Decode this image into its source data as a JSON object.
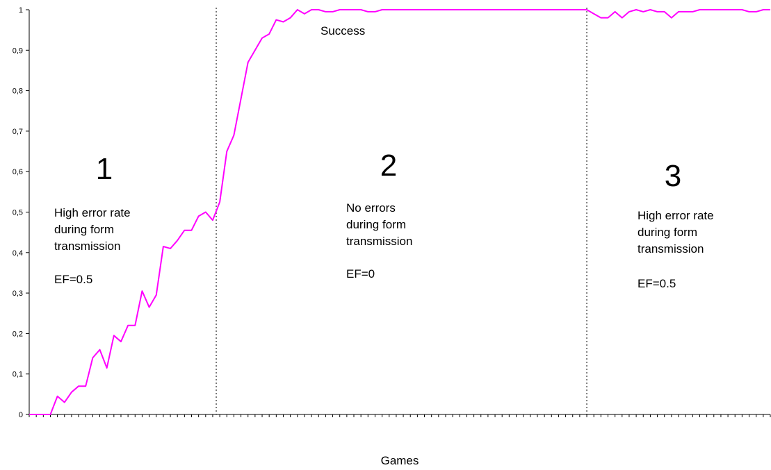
{
  "chart_data": {
    "type": "line",
    "title": "",
    "xlabel": "Games",
    "ylabel": "",
    "ylim": [
      0,
      1
    ],
    "xlim": [
      0,
      105
    ],
    "grid": false,
    "yticks": [
      {
        "value": 0,
        "label": "0"
      },
      {
        "value": 0.1,
        "label": "0,1"
      },
      {
        "value": 0.2,
        "label": "0,2"
      },
      {
        "value": 0.3,
        "label": "0,3"
      },
      {
        "value": 0.4,
        "label": "0,4"
      },
      {
        "value": 0.5,
        "label": "0,5"
      },
      {
        "value": 0.6,
        "label": "0,6"
      },
      {
        "value": 0.7,
        "label": "0,7"
      },
      {
        "value": 0.8,
        "label": "0,8"
      },
      {
        "value": 0.9,
        "label": "0,9"
      },
      {
        "value": 1,
        "label": "1"
      }
    ],
    "xticks": [
      0,
      1,
      2,
      3,
      4,
      5,
      6,
      7,
      8,
      9,
      10,
      11,
      12,
      13,
      14,
      15,
      16,
      17,
      18,
      19,
      20,
      21,
      22,
      23,
      24,
      25,
      26,
      27,
      28,
      29,
      30,
      31,
      32,
      33,
      34,
      35,
      36,
      37,
      38,
      39,
      40,
      41,
      42,
      43,
      44,
      45,
      46,
      47,
      48,
      49,
      50,
      51,
      52,
      53,
      54,
      55,
      56,
      57,
      58,
      59,
      60,
      61,
      62,
      63,
      64,
      65,
      66,
      67,
      68,
      69,
      70,
      71,
      72,
      73,
      74,
      75,
      76,
      77,
      78,
      79,
      80,
      81,
      82,
      83,
      84,
      85,
      86,
      87,
      88,
      89,
      90,
      91,
      92,
      93,
      94,
      95,
      96,
      97,
      98,
      99,
      100,
      101,
      102,
      103,
      104,
      105
    ],
    "vlines": [
      26.5,
      79
    ],
    "series": [
      {
        "color": "#ff00ff",
        "x": [
          0,
          1,
          2,
          3,
          4,
          5,
          6,
          7,
          8,
          9,
          10,
          11,
          12,
          13,
          14,
          15,
          16,
          17,
          18,
          19,
          20,
          21,
          22,
          23,
          24,
          25,
          26,
          27,
          28,
          29,
          30,
          31,
          32,
          33,
          34,
          35,
          36,
          37,
          38,
          39,
          40,
          41,
          42,
          43,
          44,
          45,
          46,
          47,
          48,
          49,
          50,
          51,
          52,
          53,
          54,
          55,
          56,
          57,
          58,
          59,
          60,
          61,
          62,
          63,
          64,
          65,
          66,
          67,
          68,
          69,
          70,
          71,
          72,
          73,
          74,
          75,
          76,
          77,
          78,
          79,
          80,
          81,
          82,
          83,
          84,
          85,
          86,
          87,
          88,
          89,
          90,
          91,
          92,
          93,
          94,
          95,
          96,
          97,
          98,
          99,
          100,
          101,
          102,
          103,
          104,
          105
        ],
        "values": [
          0,
          0,
          0,
          0,
          0.045,
          0.03,
          0.055,
          0.07,
          0.07,
          0.14,
          0.16,
          0.115,
          0.195,
          0.18,
          0.22,
          0.22,
          0.305,
          0.265,
          0.295,
          0.415,
          0.41,
          0.43,
          0.455,
          0.455,
          0.49,
          0.5,
          0.48,
          0.525,
          0.65,
          0.69,
          0.78,
          0.87,
          0.9,
          0.93,
          0.94,
          0.975,
          0.97,
          0.98,
          1,
          0.99,
          1,
          1,
          0.995,
          0.995,
          1,
          1,
          1,
          1,
          0.995,
          0.995,
          1,
          1,
          1,
          1,
          1,
          1,
          1,
          1,
          1,
          1,
          1,
          1,
          1,
          1,
          1,
          1,
          1,
          1,
          1,
          1,
          1,
          1,
          1,
          1,
          1,
          1,
          1,
          1,
          1,
          1,
          0.99,
          0.98,
          0.98,
          0.995,
          0.98,
          0.995,
          1,
          0.995,
          1,
          0.995,
          0.995,
          0.98,
          0.995,
          0.995,
          0.995,
          1,
          1,
          1,
          1,
          1,
          1,
          1,
          0.995,
          0.995,
          1,
          1
        ]
      }
    ],
    "annotations": {
      "success": "Success",
      "region1": {
        "number": "1",
        "lines": [
          "High error rate",
          "during form",
          "transmission"
        ],
        "ef": "EF=0.5"
      },
      "region2": {
        "number": "2",
        "lines": [
          "No errors",
          "during form",
          "transmission"
        ],
        "ef": "EF=0"
      },
      "region3": {
        "number": "3",
        "lines": [
          "High error rate",
          "during form",
          "transmission"
        ],
        "ef": "EF=0.5"
      }
    }
  }
}
